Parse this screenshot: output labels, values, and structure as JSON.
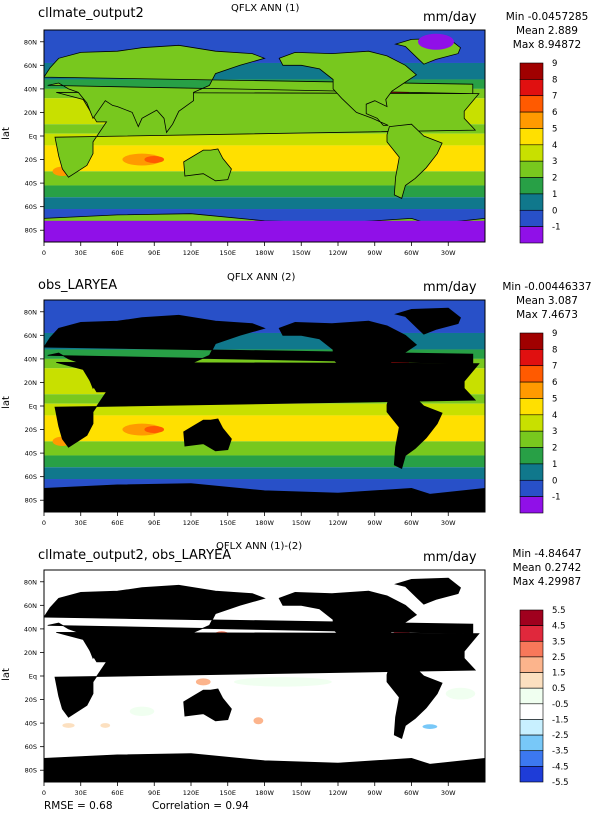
{
  "panels": [
    {
      "case_name": "cllmate_output2",
      "title": "QFLX ANN (1)",
      "units": "mm/day",
      "min_text": "Min -0.0457285",
      "mean_text": "Mean 2.889",
      "max_text": "Max 8.94872",
      "ylabel": "lat"
    },
    {
      "case_name": "obs_LARYEA",
      "title": "QFLX ANN (2)",
      "units": "mm/day",
      "min_text": "Min -0.00446337",
      "mean_text": "Mean 3.087",
      "max_text": "Max 7.4673",
      "ylabel": "lat"
    },
    {
      "case_name": "cllmate_output2, obs_LARYEA",
      "title": "QFLX ANN (1)-(2)",
      "units": "mm/day",
      "min_text": "Min -4.84647",
      "mean_text": "Mean 0.2742",
      "max_text": "Max 4.29987",
      "ylabel": "lat"
    }
  ],
  "footer": {
    "rmse": "RMSE = 0.68",
    "correlation": "Correlation = 0.94"
  },
  "chart_data": [
    {
      "type": "heatmap",
      "title": "QFLX ANN (1)",
      "ylabel": "lat",
      "x_ticks": [
        "0",
        "30E",
        "60E",
        "90E",
        "120E",
        "150E",
        "180W",
        "150W",
        "120W",
        "90W",
        "60W",
        "30W"
      ],
      "y_ticks": [
        "80N",
        "60N",
        "40N",
        "20N",
        "Eq",
        "20S",
        "40S",
        "60S",
        "80S"
      ],
      "colorbar_levels": [
        "9",
        "8",
        "7",
        "6",
        "5",
        "4",
        "3",
        "2",
        "1",
        "0",
        "-1"
      ],
      "colorbar_colors": [
        "#a00000",
        "#e01010",
        "#ff5a00",
        "#ff9a00",
        "#ffe000",
        "#c8e000",
        "#78c81e",
        "#28a046",
        "#10788c",
        "#2850c8",
        "#9010e8"
      ],
      "stats": {
        "min": -0.0457285,
        "mean": 2.889,
        "max": 8.94872
      }
    },
    {
      "type": "heatmap",
      "title": "QFLX ANN (2)",
      "ylabel": "lat",
      "x_ticks": [
        "0",
        "30E",
        "60E",
        "90E",
        "120E",
        "150E",
        "180W",
        "150W",
        "120W",
        "90W",
        "60W",
        "30W"
      ],
      "y_ticks": [
        "80N",
        "60N",
        "40N",
        "20N",
        "Eq",
        "20S",
        "40S",
        "60S",
        "80S"
      ],
      "colorbar_levels": [
        "9",
        "8",
        "7",
        "6",
        "5",
        "4",
        "3",
        "2",
        "1",
        "0",
        "-1"
      ],
      "colorbar_colors": [
        "#a00000",
        "#e01010",
        "#ff5a00",
        "#ff9a00",
        "#ffe000",
        "#c8e000",
        "#78c81e",
        "#28a046",
        "#10788c",
        "#2850c8",
        "#9010e8"
      ],
      "stats": {
        "min": -0.00446337,
        "mean": 3.087,
        "max": 7.4673
      }
    },
    {
      "type": "heatmap",
      "title": "QFLX ANN (1)-(2)",
      "ylabel": "lat",
      "x_ticks": [
        "0",
        "30E",
        "60E",
        "90E",
        "120E",
        "150E",
        "180W",
        "150W",
        "120W",
        "90W",
        "60W",
        "30W"
      ],
      "y_ticks": [
        "80N",
        "60N",
        "40N",
        "20N",
        "Eq",
        "20S",
        "40S",
        "60S",
        "80S"
      ],
      "colorbar_levels": [
        "5.5",
        "4.5",
        "3.5",
        "2.5",
        "1.5",
        "0.5",
        "-0.5",
        "-1.5",
        "-2.5",
        "-3.5",
        "-4.5",
        "-5.5"
      ],
      "colorbar_colors": [
        "#a0001e",
        "#e0283c",
        "#f8785a",
        "#fcb48c",
        "#fce0c0",
        "#f0fff0",
        "#ffffff",
        "#c8f0ff",
        "#78c8f8",
        "#3c78f0",
        "#1e3cd8"
      ],
      "stats": {
        "min": -4.84647,
        "mean": 0.2742,
        "max": 4.29987,
        "rmse": 0.68,
        "correlation": 0.94
      }
    }
  ]
}
